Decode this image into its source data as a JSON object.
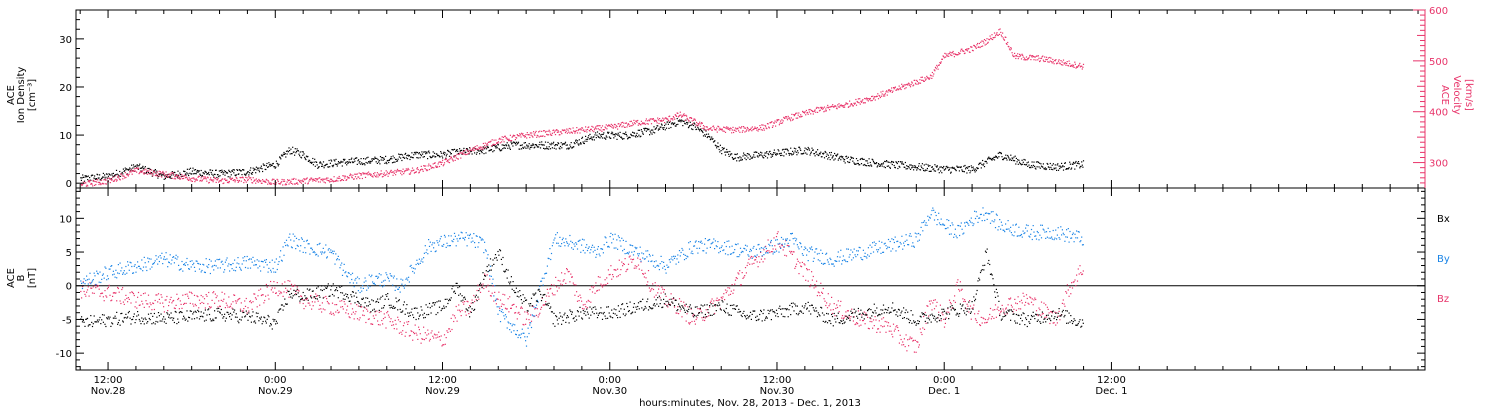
{
  "colors": {
    "black": "#000000",
    "blue": "#1a84e6",
    "pink": "#e8346a"
  },
  "xaxis": {
    "title": "hours:minutes, Nov. 28, 2013 - Dec. 1, 2013",
    "range_hours": [
      -2.3,
      94.5
    ],
    "ticks": [
      {
        "hours": 0,
        "time": "12:00",
        "date": "Nov.28"
      },
      {
        "hours": 12,
        "time": "0:00",
        "date": "Nov.29"
      },
      {
        "hours": 24,
        "time": "12:00",
        "date": "Nov.29"
      },
      {
        "hours": 36,
        "time": "0:00",
        "date": "Nov.30"
      },
      {
        "hours": 48,
        "time": "12:00",
        "date": "Nov.30"
      },
      {
        "hours": 60,
        "time": "0:00",
        "date": "Dec. 1"
      },
      {
        "hours": 72,
        "time": "12:00",
        "date": "Dec. 1"
      }
    ]
  },
  "panel_top": {
    "ylabel_left": [
      "ACE",
      "Ion Density",
      "[cm⁻³]"
    ],
    "ylabel_right": [
      "ACE",
      "Velocity",
      "[km/s]"
    ],
    "left_ticks": [
      "0",
      "10",
      "20",
      "30"
    ],
    "right_ticks": [
      "300",
      "400",
      "500",
      "600"
    ]
  },
  "panel_bottom": {
    "ylabel_left": [
      "ACE",
      "B",
      "[nT]"
    ],
    "left_ticks": [
      "10",
      "5",
      "0",
      "-5",
      "-10"
    ],
    "legend": [
      "Bx",
      "By",
      "Bz"
    ]
  },
  "chart_data": {
    "type": "scatter",
    "x_units": "hours since Nov 28 2013 12:00",
    "panels": [
      {
        "name": "ACE Ion Density / Velocity",
        "ylim": [
          -1,
          36
        ],
        "y2lim": [
          250,
          600
        ],
        "series": [
          {
            "name": "Ion Density",
            "color": "#000000",
            "axis": "left",
            "points": [
              [
                -2,
                1
              ],
              [
                0,
                1.5
              ],
              [
                2,
                3.5
              ],
              [
                4,
                1.5
              ],
              [
                6,
                2.5
              ],
              [
                8,
                2
              ],
              [
                10,
                2.5
              ],
              [
                12,
                4
              ],
              [
                13,
                7
              ],
              [
                14,
                6
              ],
              [
                15,
                4
              ],
              [
                17,
                4.5
              ],
              [
                20,
                5
              ],
              [
                22,
                6
              ],
              [
                24,
                6
              ],
              [
                25,
                6.5
              ],
              [
                27,
                7
              ],
              [
                29,
                8
              ],
              [
                31,
                8
              ],
              [
                33,
                8
              ],
              [
                35,
                10
              ],
              [
                37,
                10
              ],
              [
                39,
                11
              ],
              [
                41,
                13
              ],
              [
                42,
                12
              ],
              [
                43,
                10
              ],
              [
                44,
                7
              ],
              [
                45,
                5.5
              ],
              [
                47,
                6
              ],
              [
                50,
                7
              ],
              [
                53,
                5
              ],
              [
                56,
                4
              ],
              [
                58,
                3.5
              ],
              [
                60,
                3
              ],
              [
                62,
                3
              ],
              [
                64,
                6
              ],
              [
                66,
                4
              ],
              [
                68,
                3.5
              ],
              [
                70,
                4
              ]
            ]
          },
          {
            "name": "Velocity",
            "color": "#e8346a",
            "axis": "right",
            "points": [
              [
                -2,
                258
              ],
              [
                0,
                265
              ],
              [
                2,
                285
              ],
              [
                4,
                278
              ],
              [
                6,
                270
              ],
              [
                8,
                265
              ],
              [
                10,
                268
              ],
              [
                12,
                262
              ],
              [
                14,
                265
              ],
              [
                16,
                268
              ],
              [
                18,
                275
              ],
              [
                20,
                280
              ],
              [
                22,
                285
              ],
              [
                24,
                300
              ],
              [
                26,
                325
              ],
              [
                28,
                345
              ],
              [
                30,
                355
              ],
              [
                32,
                360
              ],
              [
                34,
                365
              ],
              [
                36,
                370
              ],
              [
                38,
                380
              ],
              [
                40,
                385
              ],
              [
                41,
                395
              ],
              [
                43,
                368
              ],
              [
                45,
                365
              ],
              [
                47,
                370
              ],
              [
                49,
                390
              ],
              [
                51,
                405
              ],
              [
                53,
                415
              ],
              [
                55,
                430
              ],
              [
                57,
                450
              ],
              [
                59,
                470
              ],
              [
                60,
                510
              ],
              [
                62,
                525
              ],
              [
                63,
                540
              ],
              [
                64,
                560
              ],
              [
                65,
                510
              ],
              [
                67,
                505
              ],
              [
                69,
                495
              ],
              [
                70,
                490
              ]
            ]
          }
        ]
      },
      {
        "name": "ACE B",
        "ylim": [
          -12.5,
          14.5
        ],
        "series": [
          {
            "name": "Bx",
            "color": "#000000",
            "points": [
              [
                -2,
                -5.5
              ],
              [
                0,
                -5
              ],
              [
                2,
                -4.5
              ],
              [
                4,
                -4.8
              ],
              [
                6,
                -4.5
              ],
              [
                8,
                -4.2
              ],
              [
                10,
                -4.5
              ],
              [
                12,
                -5.5
              ],
              [
                13,
                -1
              ],
              [
                14,
                -1.5
              ],
              [
                15,
                -1
              ],
              [
                16,
                -0.5
              ],
              [
                17,
                -1
              ],
              [
                18,
                -2
              ],
              [
                19,
                -3
              ],
              [
                20,
                -2
              ],
              [
                22,
                -4
              ],
              [
                24,
                -3
              ],
              [
                25,
                0
              ],
              [
                26,
                -4
              ],
              [
                27,
                2
              ],
              [
                28,
                5
              ],
              [
                29,
                0
              ],
              [
                30,
                -3
              ],
              [
                31,
                -1
              ],
              [
                32,
                -5
              ],
              [
                34,
                -4
              ],
              [
                36,
                -4
              ],
              [
                38,
                -3
              ],
              [
                40,
                -2
              ],
              [
                42,
                -4
              ],
              [
                44,
                -3
              ],
              [
                46,
                -4.5
              ],
              [
                48,
                -4
              ],
              [
                50,
                -3
              ],
              [
                52,
                -5
              ],
              [
                54,
                -4
              ],
              [
                56,
                -3
              ],
              [
                58,
                -5
              ],
              [
                60,
                -4
              ],
              [
                62,
                -3
              ],
              [
                63,
                5
              ],
              [
                64,
                -4
              ],
              [
                66,
                -5
              ],
              [
                68,
                -4
              ],
              [
                70,
                -5.5
              ]
            ]
          },
          {
            "name": "By",
            "color": "#1a84e6",
            "points": [
              [
                -2,
                0.5
              ],
              [
                0,
                2
              ],
              [
                2,
                3
              ],
              [
                4,
                4
              ],
              [
                6,
                3
              ],
              [
                8,
                3
              ],
              [
                10,
                3.5
              ],
              [
                12,
                3
              ],
              [
                13,
                7
              ],
              [
                14,
                6
              ],
              [
                16,
                5
              ],
              [
                17,
                2
              ],
              [
                18,
                0
              ],
              [
                19,
                1
              ],
              [
                20,
                1
              ],
              [
                21,
                0
              ],
              [
                22,
                3
              ],
              [
                23,
                6
              ],
              [
                24,
                6.5
              ],
              [
                25,
                7
              ],
              [
                26,
                7
              ],
              [
                27,
                6
              ],
              [
                28,
                -4
              ],
              [
                29,
                -6
              ],
              [
                30,
                -8
              ],
              [
                31,
                0
              ],
              [
                32,
                7
              ],
              [
                34,
                6
              ],
              [
                35,
                5
              ],
              [
                36,
                7
              ],
              [
                38,
                5
              ],
              [
                40,
                3
              ],
              [
                42,
                6
              ],
              [
                44,
                6
              ],
              [
                46,
                5
              ],
              [
                48,
                6
              ],
              [
                49,
                7
              ],
              [
                50,
                5
              ],
              [
                52,
                4
              ],
              [
                54,
                5
              ],
              [
                56,
                6
              ],
              [
                58,
                7
              ],
              [
                59,
                11
              ],
              [
                60,
                9
              ],
              [
                61,
                8
              ],
              [
                62,
                10
              ],
              [
                63,
                11
              ],
              [
                64,
                9
              ],
              [
                66,
                8
              ],
              [
                68,
                8
              ],
              [
                70,
                7
              ]
            ]
          },
          {
            "name": "Bz",
            "color": "#e8346a",
            "points": [
              [
                -2,
                -0.5
              ],
              [
                0,
                -1
              ],
              [
                2,
                -2
              ],
              [
                4,
                -2.5
              ],
              [
                6,
                -2
              ],
              [
                8,
                -2
              ],
              [
                10,
                -3
              ],
              [
                12,
                0
              ],
              [
                13,
                -0.5
              ],
              [
                14,
                -2
              ],
              [
                16,
                -3
              ],
              [
                18,
                -4
              ],
              [
                20,
                -5
              ],
              [
                22,
                -7
              ],
              [
                24,
                -8
              ],
              [
                25,
                -4
              ],
              [
                26,
                -3
              ],
              [
                27,
                1
              ],
              [
                28,
                -2
              ],
              [
                29,
                -3
              ],
              [
                30,
                -5
              ],
              [
                31,
                -3
              ],
              [
                32,
                0
              ],
              [
                33,
                2
              ],
              [
                34,
                -3
              ],
              [
                35,
                0
              ],
              [
                36,
                2
              ],
              [
                38,
                4
              ],
              [
                39,
                0
              ],
              [
                40,
                -2
              ],
              [
                41,
                -3
              ],
              [
                42,
                -5
              ],
              [
                44,
                -2
              ],
              [
                46,
                3
              ],
              [
                48,
                7
              ],
              [
                50,
                2
              ],
              [
                52,
                -3
              ],
              [
                54,
                -5
              ],
              [
                56,
                -6
              ],
              [
                57,
                -8
              ],
              [
                58,
                -9
              ],
              [
                59,
                -2
              ],
              [
                60,
                -5
              ],
              [
                61,
                0
              ],
              [
                62,
                -4
              ],
              [
                63,
                -5
              ],
              [
                64,
                -3
              ],
              [
                66,
                -2
              ],
              [
                68,
                -5
              ],
              [
                69,
                0
              ],
              [
                70,
                3
              ]
            ]
          }
        ]
      }
    ]
  }
}
